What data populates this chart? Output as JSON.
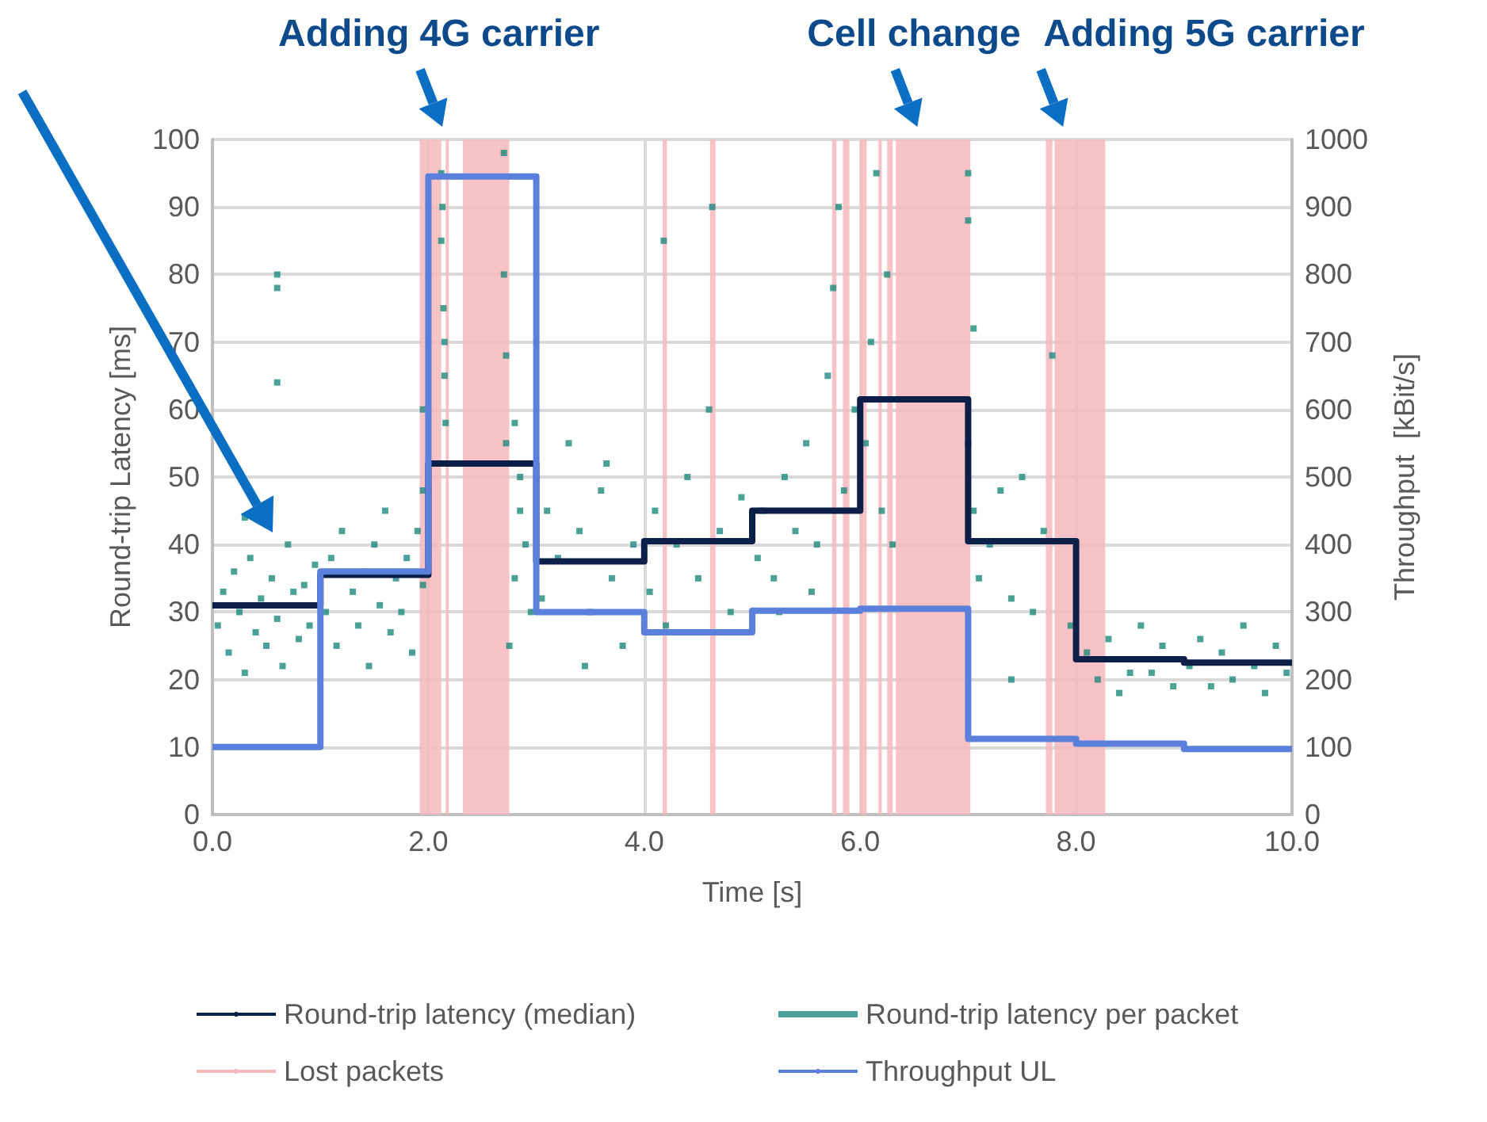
{
  "chart_data": {
    "type": "step",
    "xlabel": "Time [s]",
    "ylabel": "Round-trip Latency [ms]",
    "y2label": "Throughput  [kBit/s]",
    "xlim": [
      0,
      10
    ],
    "xticks": [
      {
        "value": 0,
        "label": "0.0"
      },
      {
        "value": 2,
        "label": "2.0"
      },
      {
        "value": 4,
        "label": "4.0"
      },
      {
        "value": 6,
        "label": "6.0"
      },
      {
        "value": 8,
        "label": "8.0"
      },
      {
        "value": 10,
        "label": "10.0"
      }
    ],
    "ylim": [
      0,
      100
    ],
    "yticks": [
      0,
      10,
      20,
      30,
      40,
      50,
      60,
      70,
      80,
      90,
      100
    ],
    "y2lim": [
      0,
      1000
    ],
    "y2ticks": [
      0,
      100,
      200,
      300,
      400,
      500,
      600,
      700,
      800,
      900,
      1000
    ],
    "grid": true,
    "legend": "bottom",
    "annotations": [
      {
        "text": "Adding 4G carrier",
        "x": 2.1,
        "y": 100
      },
      {
        "text": "Cell change",
        "x": 6.5,
        "y": 100
      },
      {
        "text": "Adding 5G carrier",
        "x": 7.85,
        "y": 100
      }
    ],
    "bands": [
      {
        "axis": "x",
        "from": 1.92,
        "to": 2.12,
        "label": "Lost packets",
        "color": "#f6b9bd"
      },
      {
        "axis": "x",
        "from": 2.16,
        "to": 2.19,
        "color": "#f6b9bd"
      },
      {
        "axis": "x",
        "from": 2.32,
        "to": 2.75,
        "color": "#f6b9bd"
      },
      {
        "axis": "x",
        "from": 4.17,
        "to": 4.21,
        "color": "#f6b9bd"
      },
      {
        "axis": "x",
        "from": 4.61,
        "to": 4.66,
        "color": "#f6b9bd"
      },
      {
        "axis": "x",
        "from": 5.74,
        "to": 5.78,
        "color": "#f6b9bd"
      },
      {
        "axis": "x",
        "from": 5.84,
        "to": 5.9,
        "color": "#f6b9bd"
      },
      {
        "axis": "x",
        "from": 6.0,
        "to": 6.06,
        "color": "#f6b9bd"
      },
      {
        "axis": "x",
        "from": 6.17,
        "to": 6.2,
        "color": "#f6b9bd"
      },
      {
        "axis": "x",
        "from": 6.25,
        "to": 6.3,
        "color": "#f6b9bd"
      },
      {
        "axis": "x",
        "from": 6.33,
        "to": 7.02,
        "color": "#f6b9bd"
      },
      {
        "axis": "x",
        "from": 7.72,
        "to": 7.78,
        "color": "#f6b9bd"
      },
      {
        "axis": "x",
        "from": 7.8,
        "to": 8.27,
        "color": "#f6b9bd"
      }
    ],
    "series": [
      {
        "name": "Round-trip latency (median)",
        "color": "#0c1f48",
        "x": [
          0,
          1,
          2,
          3,
          4,
          5,
          6,
          7,
          8,
          9,
          10
        ],
        "values": [
          31,
          35.5,
          52,
          37.5,
          40.5,
          45,
          61.5,
          40.5,
          23,
          22.5,
          22.5
        ]
      },
      {
        "name": "Round-trip latency per packet",
        "type": "scatter",
        "marker": "square",
        "color": "#1f8a7c",
        "x": [
          0.05,
          0.1,
          0.15,
          0.2,
          0.25,
          0.3,
          0.35,
          0.4,
          0.45,
          0.5,
          0.55,
          0.6,
          0.65,
          0.7,
          0.75,
          0.8,
          0.85,
          0.9,
          0.95,
          0.6,
          0.6,
          0.6,
          0.3,
          1.05,
          1.1,
          1.15,
          1.2,
          1.3,
          1.35,
          1.4,
          1.45,
          1.5,
          1.55,
          1.6,
          1.65,
          1.7,
          1.75,
          1.8,
          1.85,
          1.9,
          1.95,
          2.12,
          2.12,
          2.14,
          2.15,
          2.16,
          2.13,
          2.15,
          1.95,
          1.95,
          2.7,
          2.7,
          2.72,
          2.72,
          2.8,
          2.85,
          2.8,
          2.9,
          2.75,
          2.95,
          2.85,
          3.05,
          3.1,
          3.2,
          3.3,
          3.4,
          3.5,
          3.6,
          3.7,
          3.8,
          3.9,
          3.45,
          3.65,
          4.05,
          4.1,
          4.2,
          4.3,
          4.4,
          4.5,
          4.6,
          4.7,
          4.8,
          4.9,
          4.18,
          4.63,
          5.05,
          5.1,
          5.2,
          5.3,
          5.4,
          5.5,
          5.6,
          5.7,
          5.75,
          5.8,
          5.85,
          5.95,
          5.55,
          5.25,
          6.05,
          6.1,
          6.15,
          6.2,
          6.25,
          6.3,
          7.0,
          7.0,
          7.05,
          7.0,
          7.05,
          7.1,
          7.2,
          7.3,
          7.4,
          7.5,
          7.6,
          7.7,
          7.4,
          7.78,
          7.95,
          8.1,
          8.2,
          8.3,
          8.4,
          8.5,
          8.6,
          8.7,
          8.8,
          8.9,
          9.05,
          9.15,
          9.25,
          9.35,
          9.45,
          9.55,
          9.65,
          9.75,
          9.85,
          9.95
        ],
        "values": [
          28,
          33,
          24,
          36,
          30,
          21,
          38,
          27,
          32,
          25,
          35,
          29,
          22,
          40,
          33,
          26,
          34,
          28,
          37,
          80,
          78,
          64,
          44,
          30,
          38,
          25,
          42,
          33,
          28,
          36,
          22,
          40,
          31,
          45,
          27,
          35,
          30,
          38,
          24,
          42,
          34,
          95,
          85,
          75,
          65,
          58,
          90,
          70,
          60,
          48,
          98,
          80,
          68,
          55,
          58,
          45,
          35,
          40,
          25,
          30,
          50,
          32,
          45,
          38,
          55,
          42,
          30,
          48,
          35,
          25,
          40,
          22,
          52,
          33,
          45,
          28,
          40,
          50,
          35,
          60,
          42,
          30,
          47,
          85,
          90,
          38,
          45,
          35,
          50,
          42,
          55,
          40,
          65,
          78,
          90,
          48,
          60,
          33,
          30,
          55,
          70,
          95,
          45,
          80,
          40,
          95,
          88,
          72,
          55,
          45,
          35,
          40,
          48,
          32,
          50,
          30,
          42,
          20,
          68,
          28,
          24,
          20,
          26,
          18,
          21,
          28,
          21,
          25,
          19,
          22,
          26,
          19,
          24,
          20,
          28,
          22,
          18,
          25,
          21
        ]
      },
      {
        "name": "Throughput UL",
        "color": "#5b80dc",
        "axis": "y2",
        "x": [
          0,
          1,
          2,
          3,
          4,
          5,
          6,
          7,
          8,
          9,
          10
        ],
        "values": [
          100,
          360,
          945,
          300,
          270,
          302,
          305,
          112,
          105,
          97,
          97
        ]
      }
    ]
  }
}
